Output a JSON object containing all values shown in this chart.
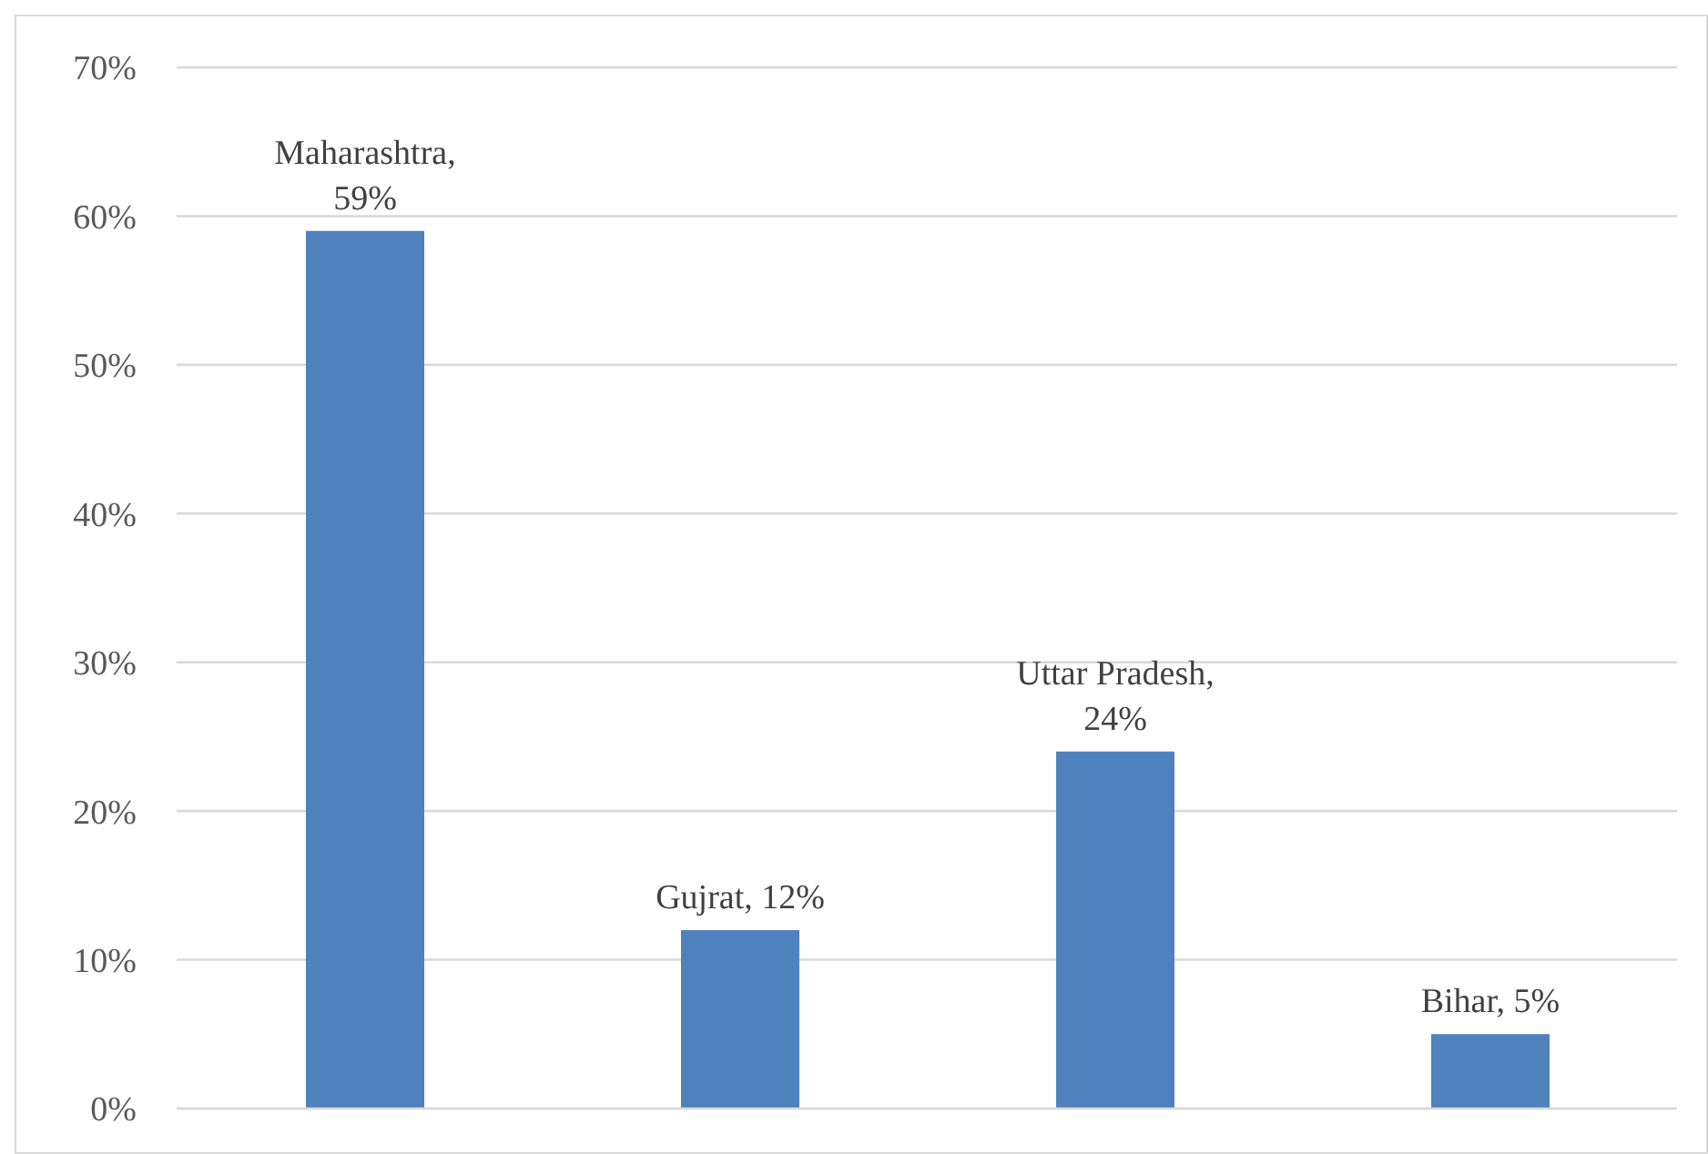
{
  "chart_data": {
    "type": "bar",
    "categories": [
      null,
      null,
      null,
      null
    ],
    "values": [
      59,
      12,
      24,
      5
    ],
    "color": "#4f81bd",
    "value_labels": [
      "Maharashtra, 59%",
      "Gujrat, 12%",
      "Uttar Pradesh, 24%",
      "Bihar, 5%"
    ],
    "ylim": [
      0,
      70
    ],
    "yticks": [
      {
        "value": 0,
        "label": "0%"
      },
      {
        "value": 10,
        "label": "10%"
      },
      {
        "value": 20,
        "label": "20%"
      },
      {
        "value": 30,
        "label": "30%"
      },
      {
        "value": 40,
        "label": "40%"
      },
      {
        "value": 50,
        "label": "50%"
      },
      {
        "value": 60,
        "label": "60%"
      },
      {
        "value": 70,
        "label": "70%"
      }
    ],
    "grid": "y",
    "tick_labels": "y"
  }
}
